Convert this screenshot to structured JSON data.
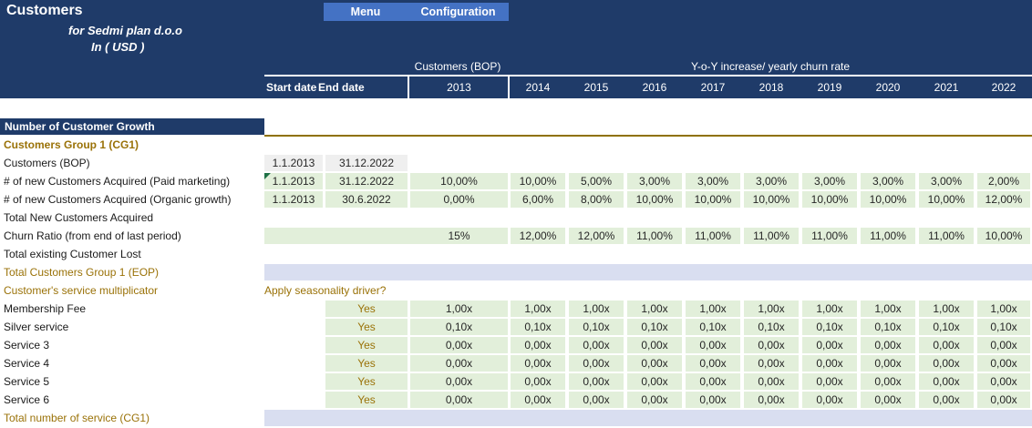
{
  "header": {
    "title": "Customers",
    "subtitle_company": "for Sedmi plan d.o.o",
    "subtitle_currency": "In ( USD )",
    "buttons": {
      "menu": "Menu",
      "configuration": "Configuration"
    },
    "col_group_left": "Customers (BOP)",
    "col_group_right": "Y-o-Y increase/ yearly churn rate",
    "start_date_label": "Start date",
    "end_date_label": "End date",
    "years": [
      "2013",
      "2014",
      "2015",
      "2016",
      "2017",
      "2018",
      "2019",
      "2020",
      "2021",
      "2022"
    ]
  },
  "section_title": "Number of Customer Growth",
  "colors": {
    "navy": "#1F3B69",
    "button_blue": "#4472C4",
    "light_green": "#E2EFDA",
    "light_gray": "#EFEFEF",
    "lavender": "#D9DEF0",
    "olive_text": "#9A7208",
    "gold_line": "#8F7100",
    "comment_triangle": "#1E7145"
  },
  "rows": [
    {
      "type": "group-title",
      "label": "Customers Group 1 (CG1)"
    },
    {
      "type": "dates",
      "label": "Customers (BOP)",
      "start": "1.1.2013",
      "end": "31.12.2022",
      "cell_color": "gray",
      "values": []
    },
    {
      "type": "dates",
      "label": "# of new Customers Acquired (Paid marketing)",
      "start": "1.1.2013",
      "end": "31.12.2022",
      "cell_color": "green",
      "comment": true,
      "values": [
        "10,00%",
        "10,00%",
        "5,00%",
        "3,00%",
        "3,00%",
        "3,00%",
        "3,00%",
        "3,00%",
        "3,00%",
        "2,00%"
      ]
    },
    {
      "type": "dates",
      "label": "# of new Customers Acquired (Organic growth)",
      "start": "1.1.2013",
      "end": "30.6.2022",
      "cell_color": "green",
      "values": [
        "0,00%",
        "6,00%",
        "8,00%",
        "10,00%",
        "10,00%",
        "10,00%",
        "10,00%",
        "10,00%",
        "10,00%",
        "12,00%"
      ]
    },
    {
      "type": "plain",
      "label": "Total New Customers Acquired"
    },
    {
      "type": "churn",
      "label": "Churn Ratio (from end of last period)",
      "values": [
        "15%",
        "12,00%",
        "12,00%",
        "11,00%",
        "11,00%",
        "11,00%",
        "11,00%",
        "11,00%",
        "11,00%",
        "10,00%"
      ]
    },
    {
      "type": "plain",
      "label": "Total existing Customer Lost"
    },
    {
      "type": "band",
      "label": "Total Customers Group 1 (EOP)"
    },
    {
      "type": "note",
      "label": "Customer's service multiplicator",
      "note": "Apply seasonality driver?"
    },
    {
      "type": "service",
      "label": "Membership Fee",
      "toggle": "Yes",
      "values": [
        "1,00x",
        "1,00x",
        "1,00x",
        "1,00x",
        "1,00x",
        "1,00x",
        "1,00x",
        "1,00x",
        "1,00x",
        "1,00x"
      ]
    },
    {
      "type": "service",
      "label": "Silver service",
      "toggle": "Yes",
      "values": [
        "0,10x",
        "0,10x",
        "0,10x",
        "0,10x",
        "0,10x",
        "0,10x",
        "0,10x",
        "0,10x",
        "0,10x",
        "0,10x"
      ]
    },
    {
      "type": "service",
      "label": "Service 3",
      "toggle": "Yes",
      "values": [
        "0,00x",
        "0,00x",
        "0,00x",
        "0,00x",
        "0,00x",
        "0,00x",
        "0,00x",
        "0,00x",
        "0,00x",
        "0,00x"
      ]
    },
    {
      "type": "service",
      "label": "Service 4",
      "toggle": "Yes",
      "values": [
        "0,00x",
        "0,00x",
        "0,00x",
        "0,00x",
        "0,00x",
        "0,00x",
        "0,00x",
        "0,00x",
        "0,00x",
        "0,00x"
      ]
    },
    {
      "type": "service",
      "label": "Service 5",
      "toggle": "Yes",
      "values": [
        "0,00x",
        "0,00x",
        "0,00x",
        "0,00x",
        "0,00x",
        "0,00x",
        "0,00x",
        "0,00x",
        "0,00x",
        "0,00x"
      ]
    },
    {
      "type": "service",
      "label": "Service 6",
      "toggle": "Yes",
      "values": [
        "0,00x",
        "0,00x",
        "0,00x",
        "0,00x",
        "0,00x",
        "0,00x",
        "0,00x",
        "0,00x",
        "0,00x",
        "0,00x"
      ]
    },
    {
      "type": "band",
      "label": "Total number of service (CG1)"
    }
  ]
}
